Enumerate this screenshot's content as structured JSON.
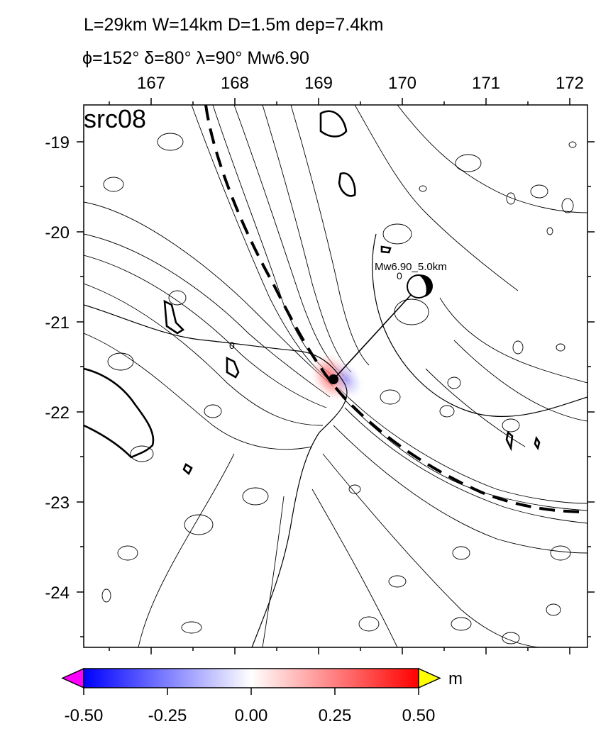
{
  "header": {
    "line1": "L=29km W=14km D=1.5m dep=7.4km",
    "line2": "ϕ=152° δ=80° λ=90° Mw6.90"
  },
  "map": {
    "panel_label": "src08",
    "lon_ticks": [
      "167",
      "168",
      "169",
      "170",
      "171",
      "172"
    ],
    "lat_ticks": [
      "-19",
      "-20",
      "-21",
      "-22",
      "-23",
      "-24"
    ],
    "epicenter_label": "Mw6.90_5.0km",
    "zero_labels": [
      "0",
      "0"
    ],
    "trench_style": "dashed",
    "colors": {
      "negative": "#0000ff",
      "neutral": "#ffffff",
      "positive": "#ff0000",
      "below_range": "#ff00ff",
      "above_range": "#ffff00"
    }
  },
  "colorbar": {
    "unit": "m",
    "ticks": [
      "-0.50",
      "-0.25",
      "0.00",
      "0.25",
      "0.50"
    ],
    "min": -0.5,
    "max": 0.5
  }
}
